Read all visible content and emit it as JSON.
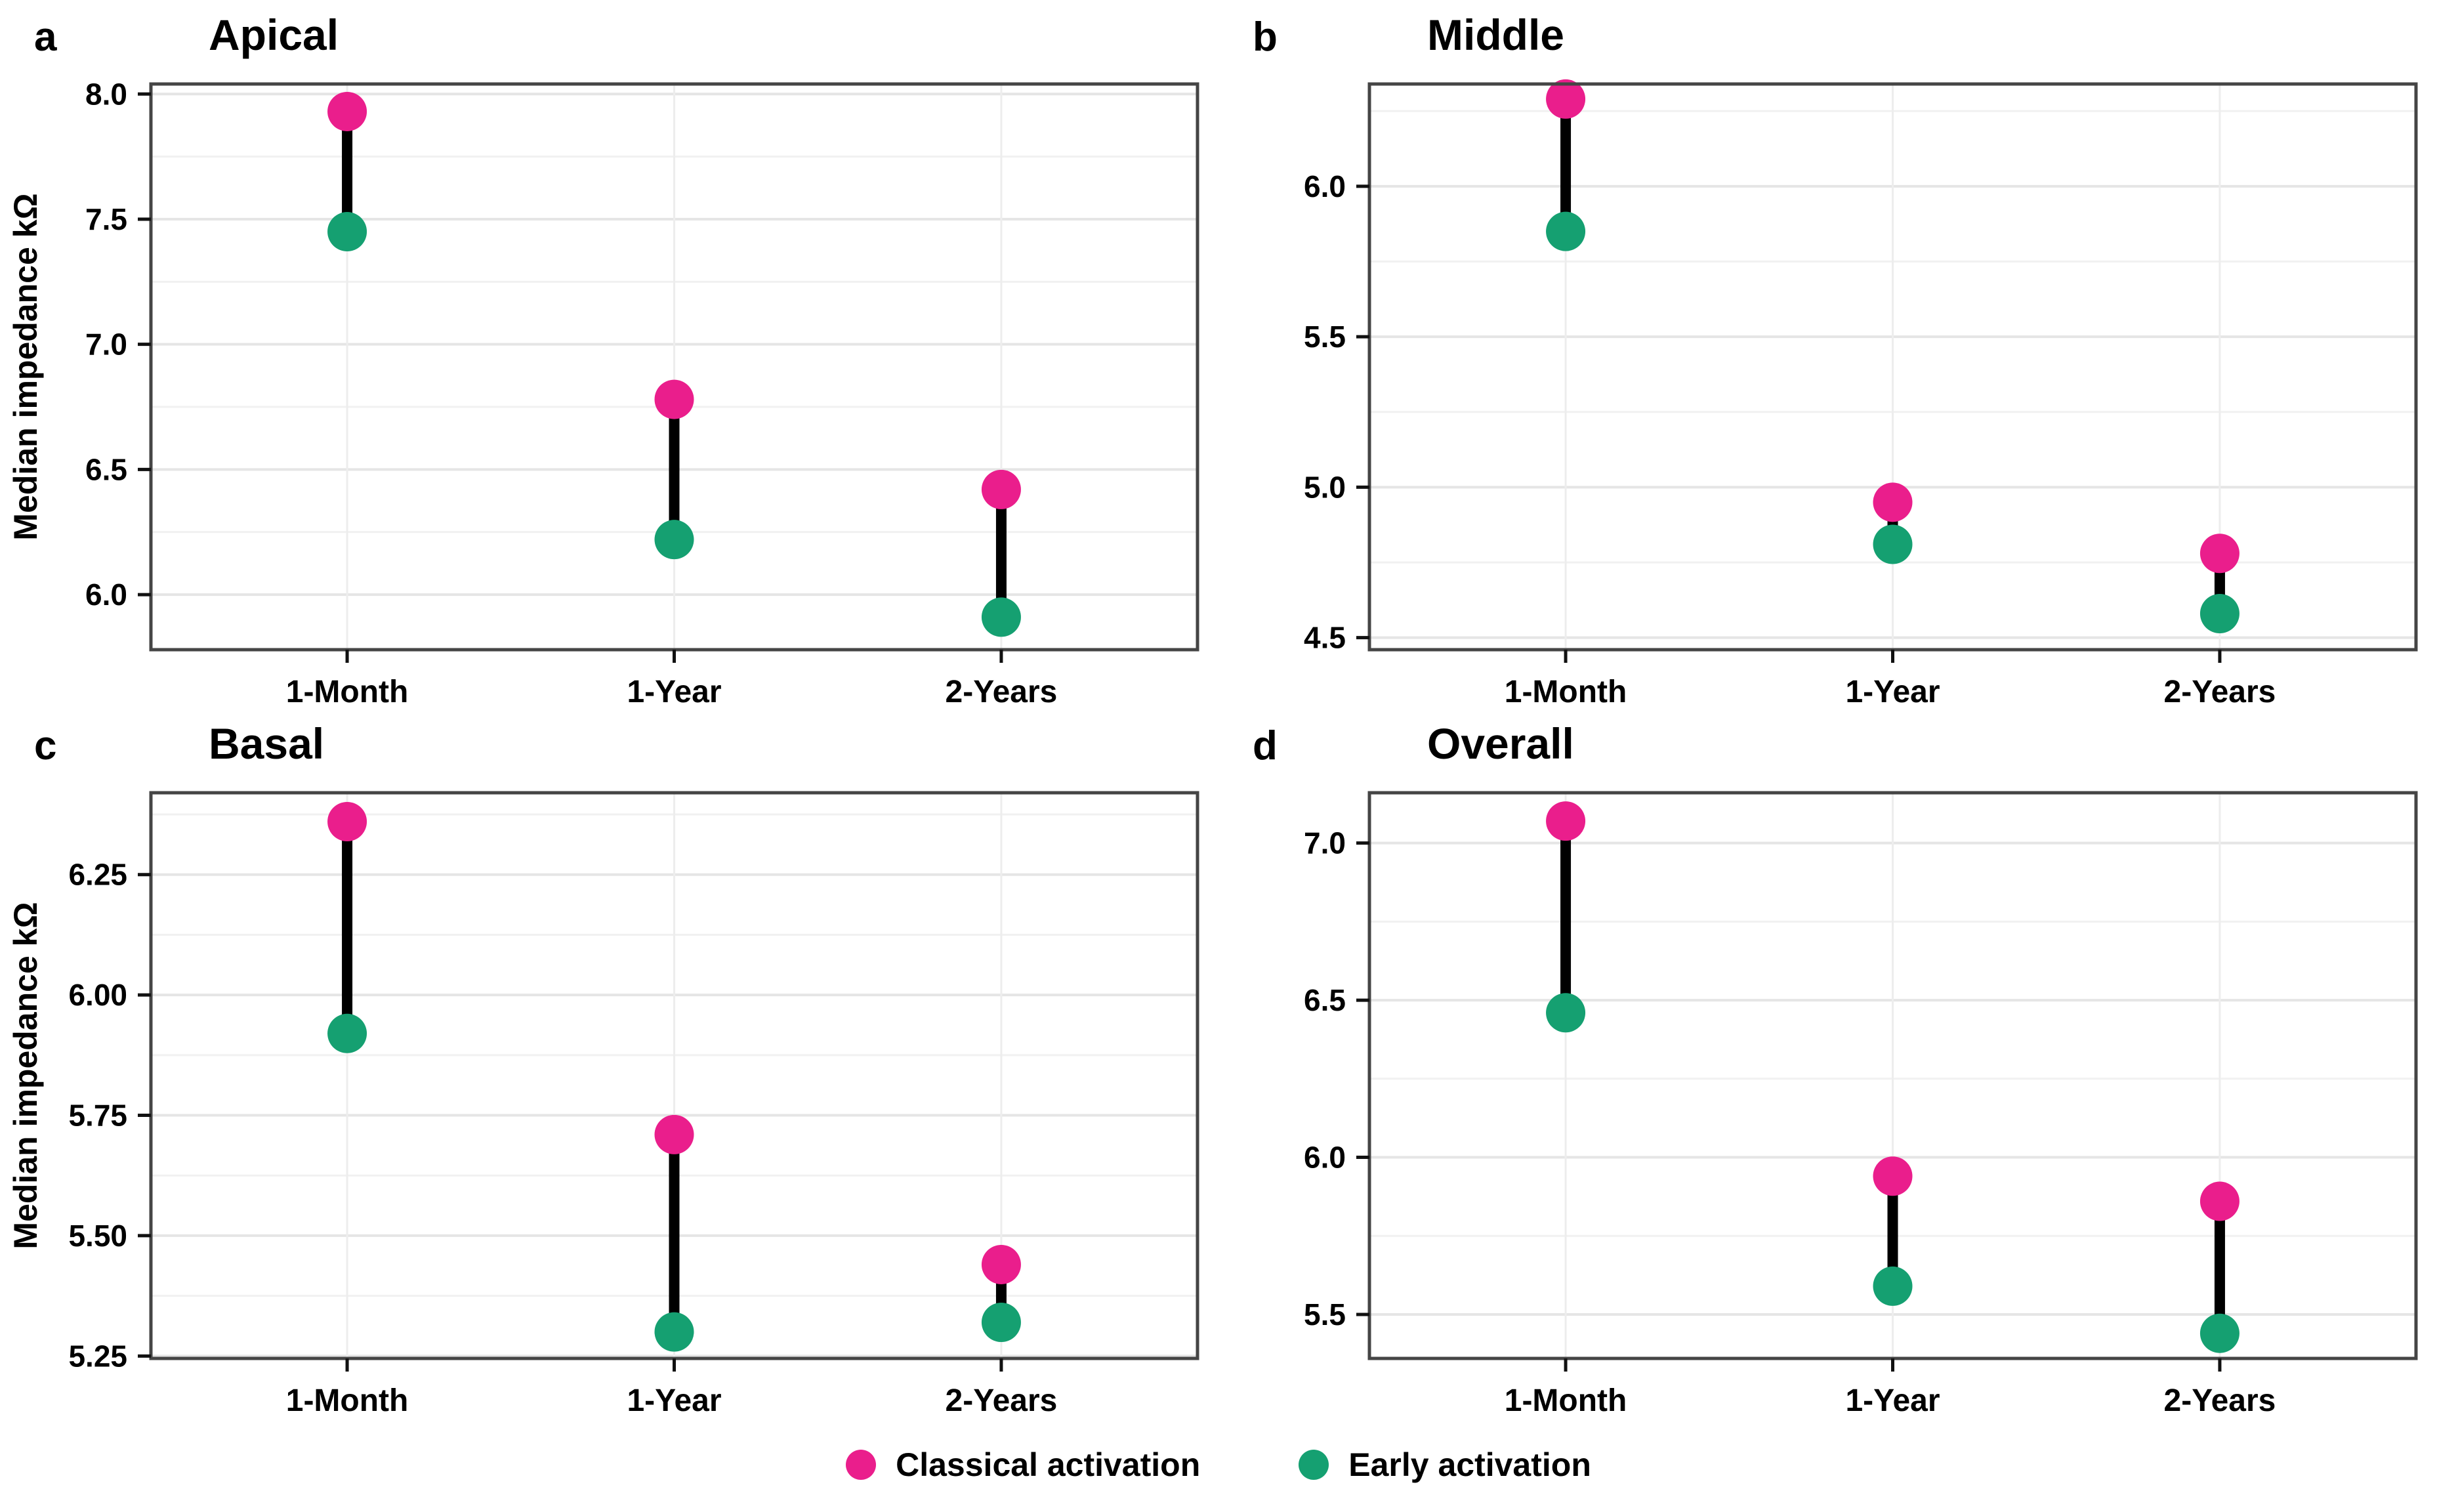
{
  "figure": {
    "background": "#ffffff",
    "grid_major_color": "#e5e5e5",
    "grid_minor_color": "#f1f1f1",
    "grid_vertical_color": "#ededed",
    "panel_border_color": "#454545",
    "connector_color": "#000000",
    "classical_color": "#EA1E8C",
    "early_color": "#15A071"
  },
  "legend": {
    "items": [
      {
        "label": "Classical activation",
        "color": "#EA1E8C",
        "marker": "circle-icon"
      },
      {
        "label": "Early activation",
        "color": "#15A071",
        "marker": "circle-icon"
      }
    ]
  },
  "chart_data": [
    {
      "type": "dumbbell",
      "panel_label": "a",
      "title": "Apical",
      "ylabel": "Median impedance kΩ",
      "categories": [
        "1-Month",
        "1-Year",
        "2-Years"
      ],
      "series": [
        {
          "name": "Classical activation",
          "color": "#EA1E8C",
          "values": [
            7.93,
            6.78,
            6.42
          ]
        },
        {
          "name": "Early activation",
          "color": "#15A071",
          "values": [
            7.45,
            6.22,
            5.91
          ]
        }
      ],
      "yticks": [
        8.0,
        7.5,
        7.0,
        6.5,
        6.0
      ],
      "ytick_labels": [
        "8.0",
        "7.5",
        "7.0",
        "6.5",
        "6.0"
      ],
      "ylim": [
        5.78,
        8.04
      ],
      "grid": true,
      "legend_position": "bottom"
    },
    {
      "type": "dumbbell",
      "panel_label": "b",
      "title": "Middle",
      "ylabel": "",
      "categories": [
        "1-Month",
        "1-Year",
        "2-Years"
      ],
      "series": [
        {
          "name": "Classical activation",
          "color": "#EA1E8C",
          "values": [
            6.29,
            4.95,
            4.78
          ]
        },
        {
          "name": "Early activation",
          "color": "#15A071",
          "values": [
            5.85,
            4.81,
            4.58
          ]
        }
      ],
      "yticks": [
        6.0,
        5.5,
        5.0,
        4.5
      ],
      "ytick_labels": [
        "6.0",
        "5.5",
        "5.0",
        "4.5"
      ],
      "ylim": [
        4.46,
        6.34
      ],
      "grid": true,
      "legend_position": "bottom"
    },
    {
      "type": "dumbbell",
      "panel_label": "c",
      "title": "Basal",
      "ylabel": "Median impedance kΩ",
      "categories": [
        "1-Month",
        "1-Year",
        "2-Years"
      ],
      "series": [
        {
          "name": "Classical activation",
          "color": "#EA1E8C",
          "values": [
            6.36,
            5.71,
            5.44
          ]
        },
        {
          "name": "Early activation",
          "color": "#15A071",
          "values": [
            5.92,
            5.3,
            5.32
          ]
        }
      ],
      "yticks": [
        6.25,
        6.0,
        5.75,
        5.5,
        5.25
      ],
      "ytick_labels": [
        "6.25",
        "6.00",
        "5.75",
        "5.50",
        "5.25"
      ],
      "ylim": [
        5.245,
        6.42
      ],
      "grid": true,
      "legend_position": "bottom"
    },
    {
      "type": "dumbbell",
      "panel_label": "d",
      "title": "Overall",
      "ylabel": "",
      "categories": [
        "1-Month",
        "1-Year",
        "2-Years"
      ],
      "series": [
        {
          "name": "Classical activation",
          "color": "#EA1E8C",
          "values": [
            7.07,
            5.94,
            5.86
          ]
        },
        {
          "name": "Early activation",
          "color": "#15A071",
          "values": [
            6.46,
            5.59,
            5.44
          ]
        }
      ],
      "yticks": [
        7.0,
        6.5,
        6.0,
        5.5
      ],
      "ytick_labels": [
        "7.0",
        "6.5",
        "6.0",
        "5.5"
      ],
      "ylim": [
        5.36,
        7.16
      ],
      "grid": true,
      "legend_position": "bottom"
    }
  ]
}
